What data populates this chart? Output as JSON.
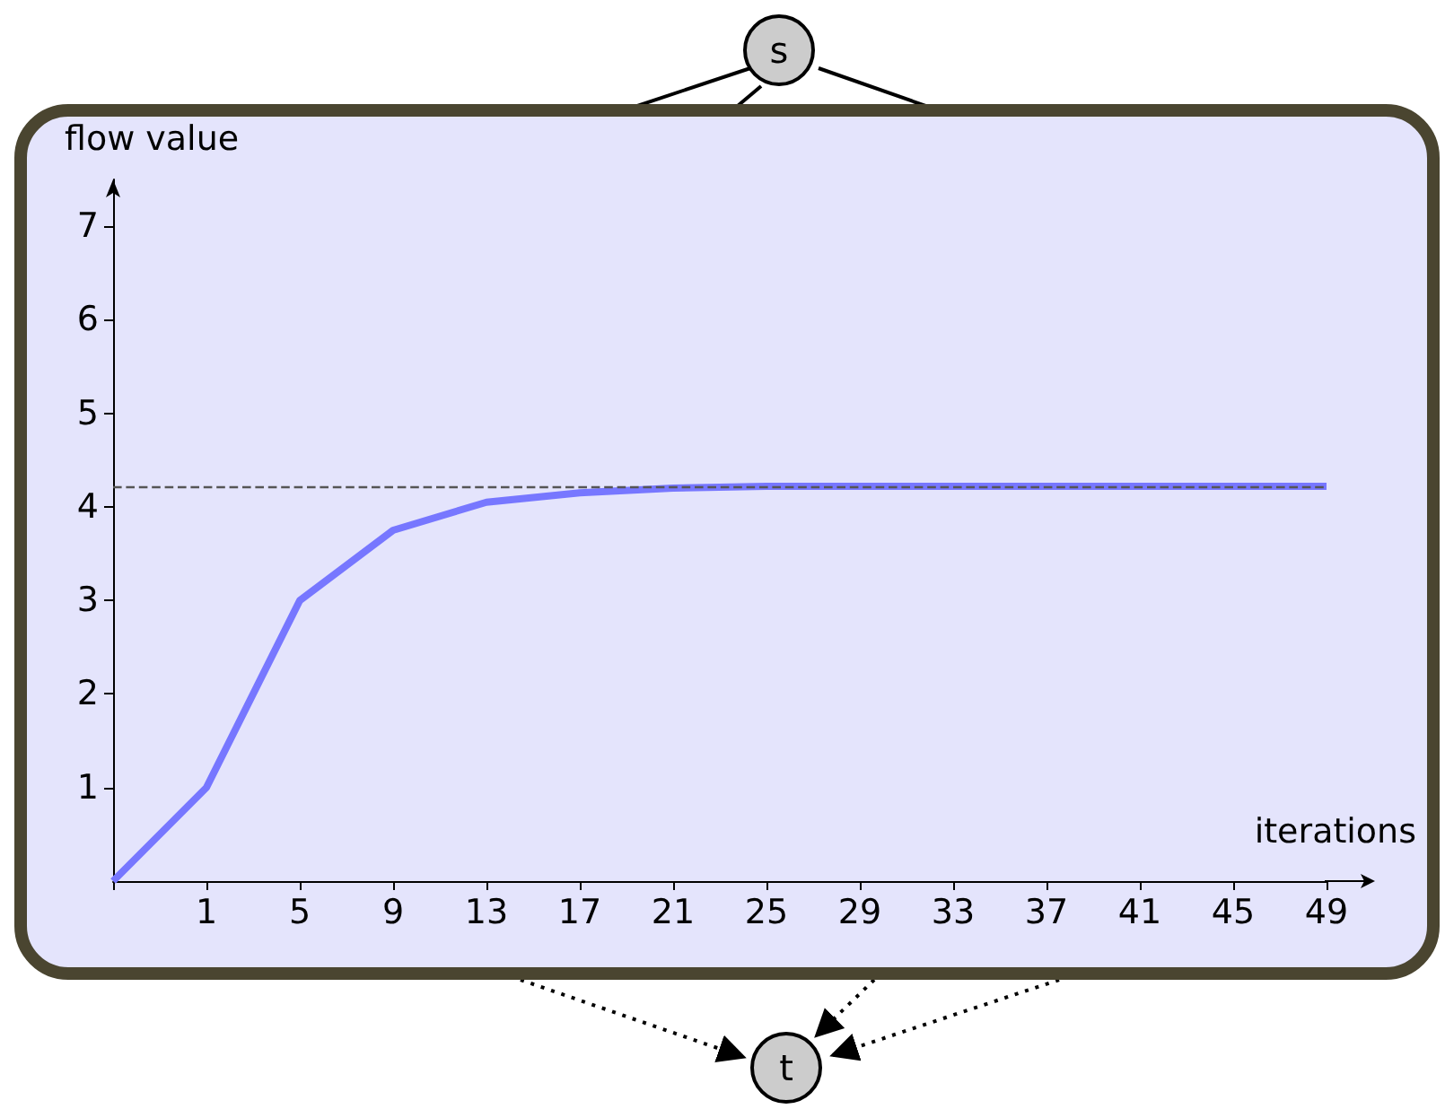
{
  "chart_data": {
    "type": "line",
    "xlabel": "iterations",
    "ylabel": "flow value",
    "categories": [
      null,
      "1",
      "5",
      "9",
      "13",
      "17",
      "21",
      "25",
      "29",
      "33",
      "37",
      "41",
      "45",
      "49"
    ],
    "series": [
      {
        "color": "#7777ff",
        "values": [
          0,
          1,
          3,
          3.75,
          4.05,
          4.15,
          4.2,
          4.22,
          4.22,
          4.22,
          4.22,
          4.22,
          4.22,
          4.22
        ]
      }
    ],
    "ylim": [
      0,
      7.5
    ],
    "yticks": [
      1,
      2,
      3,
      4,
      5,
      6,
      7
    ],
    "ref_lines": [
      {
        "axis": "y",
        "value": 4.22,
        "color": "#555555",
        "line_style": "dashed"
      }
    ],
    "annotations": [
      "s",
      "t"
    ],
    "grid": false,
    "marker": "none",
    "line_style": "solid"
  }
}
